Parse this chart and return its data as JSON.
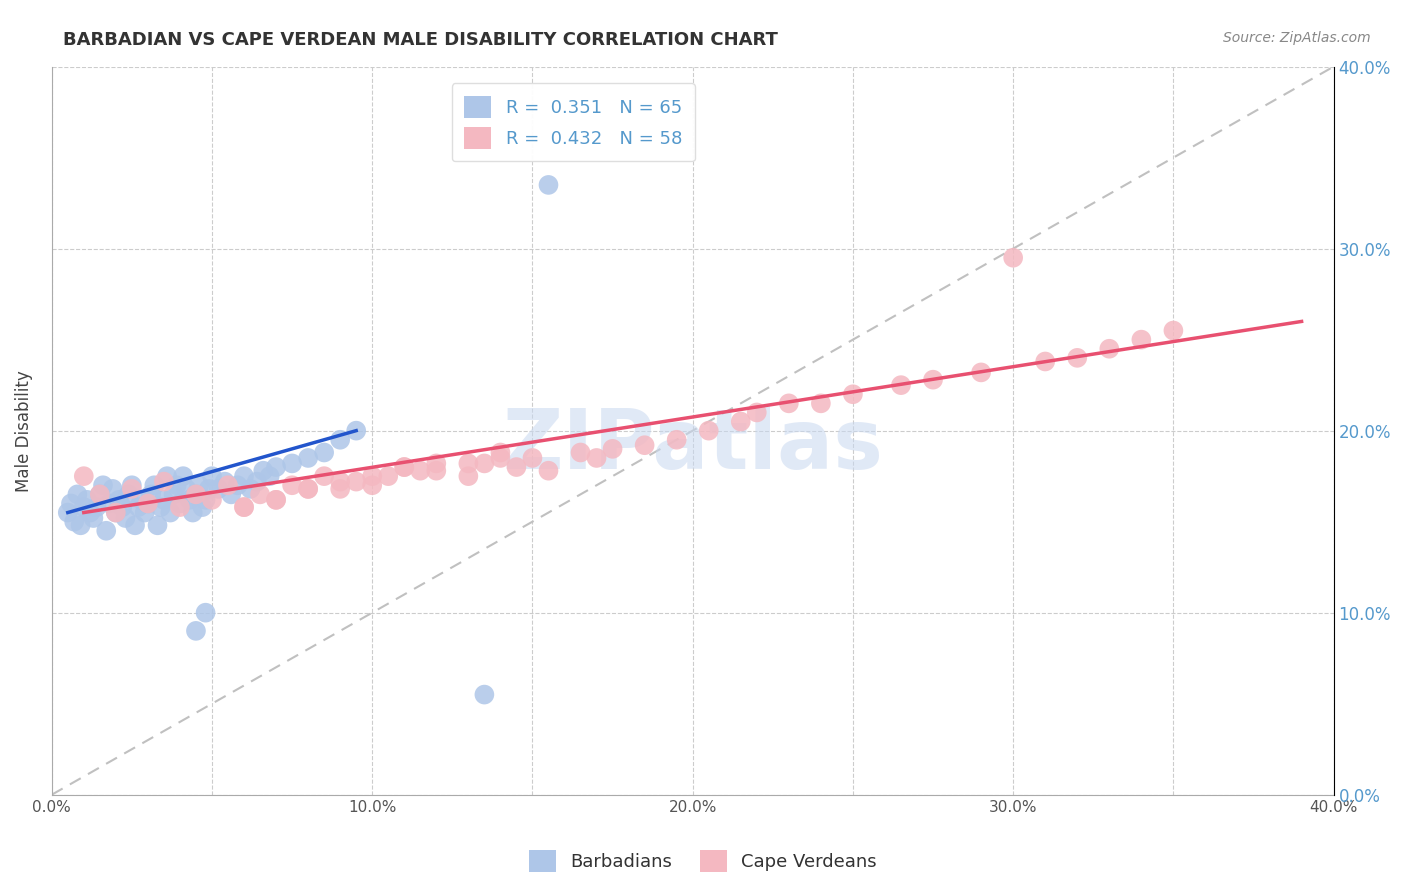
{
  "title": "BARBADIAN VS CAPE VERDEAN MALE DISABILITY CORRELATION CHART",
  "source_text": "Source: ZipAtlas.com",
  "ylabel": "Male Disability",
  "xlim": [
    0.0,
    0.4
  ],
  "ylim": [
    0.0,
    0.4
  ],
  "xtick_labels": [
    "0.0%",
    "",
    "10.0%",
    "",
    "20.0%",
    "",
    "30.0%",
    "",
    "40.0%"
  ],
  "ytick_labels": [
    "0.0%",
    "10.0%",
    "20.0%",
    "30.0%",
    "40.0%"
  ],
  "xtick_vals": [
    0.0,
    0.05,
    0.1,
    0.15,
    0.2,
    0.25,
    0.3,
    0.35,
    0.4
  ],
  "ytick_vals": [
    0.0,
    0.1,
    0.2,
    0.3,
    0.4
  ],
  "barbadian_color": "#aec6e8",
  "capeverdean_color": "#f4b8c1",
  "barbadian_line_color": "#2255cc",
  "capeverdean_line_color": "#e85070",
  "diagonal_color": "#c0c0c0",
  "R_barbadian": 0.351,
  "N_barbadian": 65,
  "R_capeverdean": 0.432,
  "N_capeverdean": 58,
  "watermark": "ZIPatlas",
  "watermark_color": "#c8d8f0",
  "legend_label_barbadian": "Barbadians",
  "legend_label_capeverdean": "Cape Verdeans",
  "background_color": "#ffffff",
  "grid_color": "#cccccc",
  "title_color": "#333333",
  "tick_color": "#5599cc",
  "barbadian_x": [
    0.005,
    0.006,
    0.007,
    0.008,
    0.009,
    0.01,
    0.011,
    0.012,
    0.013,
    0.014,
    0.015,
    0.016,
    0.017,
    0.018,
    0.019,
    0.02,
    0.021,
    0.022,
    0.023,
    0.024,
    0.025,
    0.026,
    0.027,
    0.028,
    0.029,
    0.03,
    0.031,
    0.032,
    0.033,
    0.034,
    0.035,
    0.036,
    0.037,
    0.038,
    0.039,
    0.04,
    0.041,
    0.042,
    0.043,
    0.044,
    0.045,
    0.046,
    0.047,
    0.048,
    0.049,
    0.05,
    0.052,
    0.054,
    0.056,
    0.058,
    0.06,
    0.062,
    0.064,
    0.066,
    0.068,
    0.07,
    0.075,
    0.08,
    0.085,
    0.09,
    0.095,
    0.155,
    0.135,
    0.045,
    0.048
  ],
  "barbadian_y": [
    0.155,
    0.16,
    0.15,
    0.165,
    0.148,
    0.158,
    0.162,
    0.155,
    0.152,
    0.158,
    0.165,
    0.17,
    0.145,
    0.16,
    0.168,
    0.155,
    0.162,
    0.158,
    0.152,
    0.165,
    0.17,
    0.148,
    0.158,
    0.162,
    0.155,
    0.16,
    0.165,
    0.17,
    0.148,
    0.158,
    0.162,
    0.175,
    0.155,
    0.165,
    0.17,
    0.16,
    0.175,
    0.168,
    0.162,
    0.155,
    0.165,
    0.17,
    0.158,
    0.162,
    0.168,
    0.175,
    0.168,
    0.172,
    0.165,
    0.17,
    0.175,
    0.168,
    0.172,
    0.178,
    0.175,
    0.18,
    0.182,
    0.185,
    0.188,
    0.195,
    0.2,
    0.335,
    0.055,
    0.09,
    0.1
  ],
  "capeverdean_x": [
    0.01,
    0.015,
    0.02,
    0.025,
    0.03,
    0.035,
    0.04,
    0.045,
    0.05,
    0.055,
    0.06,
    0.065,
    0.07,
    0.075,
    0.08,
    0.085,
    0.09,
    0.095,
    0.1,
    0.105,
    0.11,
    0.115,
    0.12,
    0.13,
    0.135,
    0.14,
    0.145,
    0.15,
    0.155,
    0.165,
    0.17,
    0.175,
    0.185,
    0.195,
    0.205,
    0.215,
    0.22,
    0.23,
    0.24,
    0.25,
    0.265,
    0.275,
    0.29,
    0.3,
    0.31,
    0.32,
    0.33,
    0.34,
    0.35,
    0.06,
    0.07,
    0.08,
    0.09,
    0.1,
    0.11,
    0.12,
    0.13,
    0.14
  ],
  "capeverdean_y": [
    0.175,
    0.165,
    0.155,
    0.168,
    0.16,
    0.172,
    0.158,
    0.165,
    0.162,
    0.17,
    0.158,
    0.165,
    0.162,
    0.17,
    0.168,
    0.175,
    0.168,
    0.172,
    0.17,
    0.175,
    0.18,
    0.178,
    0.182,
    0.175,
    0.182,
    0.185,
    0.18,
    0.185,
    0.178,
    0.188,
    0.185,
    0.19,
    0.192,
    0.195,
    0.2,
    0.205,
    0.21,
    0.215,
    0.215,
    0.22,
    0.225,
    0.228,
    0.232,
    0.295,
    0.238,
    0.24,
    0.245,
    0.25,
    0.255,
    0.158,
    0.162,
    0.168,
    0.172,
    0.175,
    0.18,
    0.178,
    0.182,
    0.188
  ],
  "barb_line_x": [
    0.005,
    0.095
  ],
  "barb_line_y_start": 0.155,
  "barb_line_y_end": 0.2,
  "cape_line_x": [
    0.01,
    0.39
  ],
  "cape_line_y_start": 0.155,
  "cape_line_y_end": 0.26
}
